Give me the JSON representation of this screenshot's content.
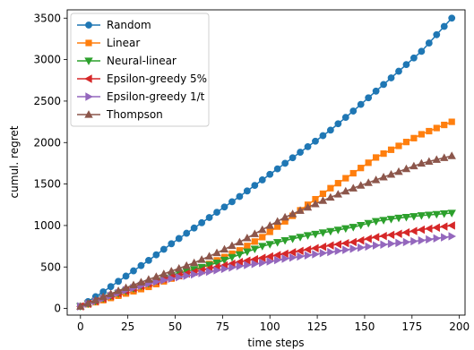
{
  "chart_data": {
    "type": "line",
    "title": "",
    "xlabel": "time steps",
    "ylabel": "cumul. regret",
    "xlim": [
      -7,
      203
    ],
    "ylim": [
      -80,
      3600
    ],
    "xticks": [
      0,
      25,
      50,
      75,
      100,
      125,
      150,
      175,
      200
    ],
    "yticks": [
      0,
      500,
      1000,
      1500,
      2000,
      2500,
      3000,
      3500
    ],
    "grid": false,
    "legend_position": "top-left",
    "marker_every": 4,
    "series": [
      {
        "name": "Random",
        "color": "#1f77b4",
        "marker": "circle",
        "x": [
          0,
          12,
          24,
          36,
          48,
          60,
          72,
          84,
          96,
          108,
          120,
          132,
          144,
          156,
          168,
          180,
          196
        ],
        "y": [
          25,
          200,
          390,
          580,
          780,
          970,
          1160,
          1350,
          1550,
          1750,
          1950,
          2150,
          2380,
          2620,
          2860,
          3100,
          3500
        ]
      },
      {
        "name": "Linear",
        "color": "#ff7f0e",
        "marker": "square",
        "x": [
          0,
          12,
          24,
          36,
          48,
          60,
          72,
          84,
          96,
          108,
          120,
          132,
          144,
          156,
          168,
          180,
          196
        ],
        "y": [
          25,
          100,
          180,
          260,
          360,
          450,
          580,
          700,
          860,
          1050,
          1250,
          1450,
          1630,
          1820,
          1960,
          2100,
          2250
        ]
      },
      {
        "name": "Neural-linear",
        "color": "#2ca02c",
        "marker": "triangle-down",
        "x": [
          0,
          12,
          24,
          36,
          48,
          60,
          72,
          84,
          96,
          108,
          120,
          132,
          144,
          156,
          168,
          180,
          196
        ],
        "y": [
          25,
          120,
          210,
          300,
          400,
          470,
          550,
          650,
          750,
          820,
          880,
          930,
          980,
          1050,
          1090,
          1120,
          1150
        ]
      },
      {
        "name": "Epsilon-greedy 5%",
        "color": "#d62728",
        "marker": "triangle-left",
        "x": [
          0,
          12,
          24,
          36,
          48,
          60,
          72,
          84,
          96,
          108,
          120,
          132,
          144,
          156,
          168,
          180,
          196
        ],
        "y": [
          25,
          120,
          210,
          300,
          380,
          440,
          500,
          560,
          610,
          660,
          710,
          760,
          800,
          860,
          900,
          950,
          1000
        ]
      },
      {
        "name": "Epsilon-greedy 1/t",
        "color": "#9467bd",
        "marker": "triangle-right",
        "x": [
          0,
          12,
          24,
          36,
          48,
          60,
          72,
          84,
          96,
          108,
          120,
          132,
          144,
          156,
          168,
          180,
          196
        ],
        "y": [
          25,
          120,
          220,
          300,
          360,
          410,
          460,
          510,
          550,
          600,
          640,
          680,
          720,
          760,
          790,
          820,
          870
        ]
      },
      {
        "name": "Thompson",
        "color": "#8c564b",
        "marker": "triangle-up",
        "x": [
          0,
          12,
          24,
          36,
          48,
          60,
          72,
          84,
          96,
          108,
          120,
          132,
          144,
          156,
          168,
          180,
          196
        ],
        "y": [
          25,
          140,
          250,
          350,
          450,
          550,
          670,
          800,
          950,
          1100,
          1220,
          1340,
          1450,
          1550,
          1650,
          1750,
          1840
        ]
      }
    ]
  }
}
